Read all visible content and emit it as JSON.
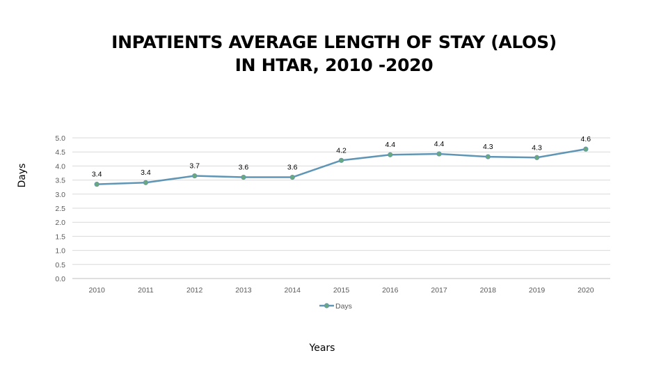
{
  "slide": {
    "title_line1": "INPATIENTS AVERAGE LENGTH OF STAY (ALOS)",
    "title_line2": "IN HTAR, 2010 -2020",
    "ylabel": "Days",
    "xlabel": "Years"
  },
  "chart_data": {
    "type": "line",
    "categories": [
      "2010",
      "2011",
      "2012",
      "2013",
      "2014",
      "2015",
      "2016",
      "2017",
      "2018",
      "2019",
      "2020"
    ],
    "series": [
      {
        "name": "Days",
        "values": [
          3.35,
          3.41,
          3.65,
          3.6,
          3.6,
          4.2,
          4.4,
          4.43,
          4.33,
          4.3,
          4.6
        ],
        "labels": [
          "3.4",
          "3.4",
          "3.7",
          "3.6",
          "3.6",
          "4.2",
          "4.4",
          "4.4",
          "4.3",
          "4.3",
          "4.6"
        ],
        "color": "#5f95b5",
        "marker_color": "#6aa87f"
      }
    ],
    "ylim": [
      0,
      5
    ],
    "yticks": [
      "0.0",
      "0.5",
      "1.0",
      "1.5",
      "2.0",
      "2.5",
      "3.0",
      "3.5",
      "4.0",
      "4.5",
      "5.0"
    ],
    "grid": true,
    "legend": "bottom"
  }
}
